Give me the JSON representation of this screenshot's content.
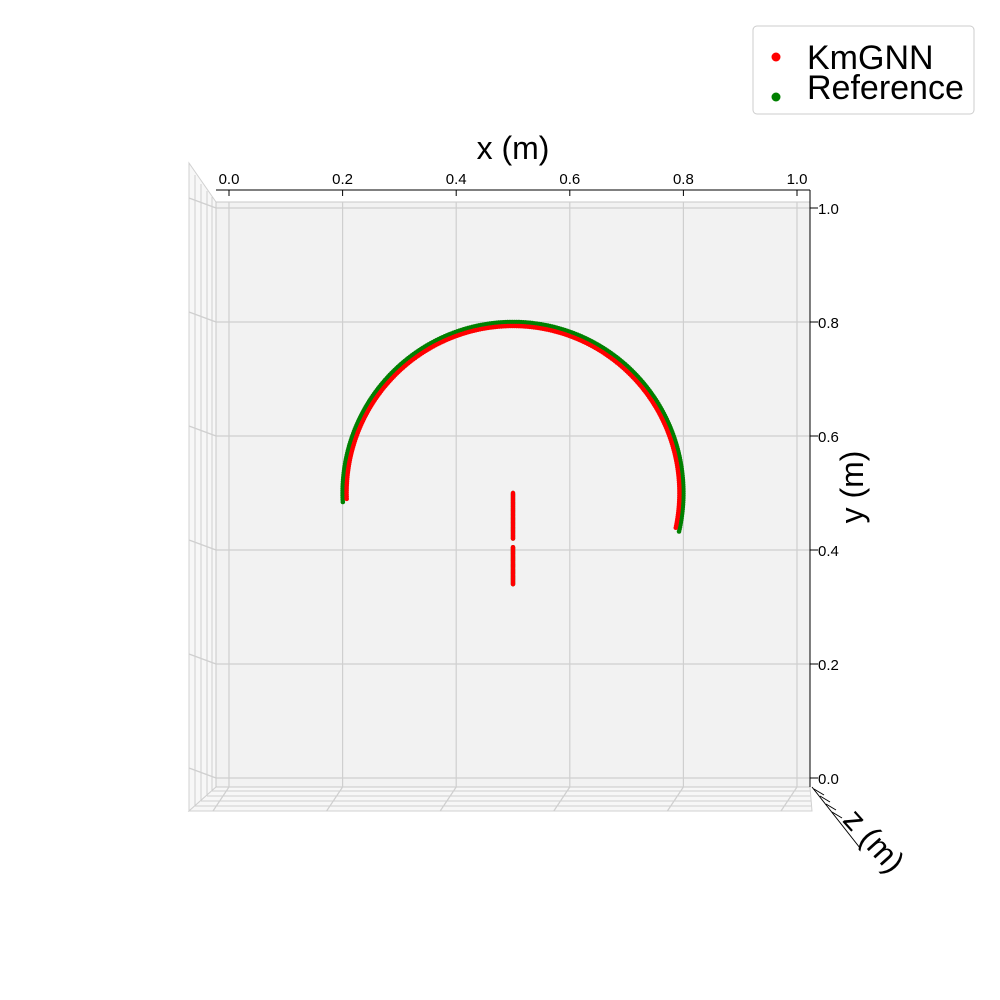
{
  "chart_data": {
    "type": "scatter",
    "projection": "3d",
    "xlabel": "x (m)",
    "ylabel": "y (m)",
    "zlabel": "z (m)",
    "xlim": [
      0.0,
      1.0
    ],
    "ylim": [
      0.0,
      1.0
    ],
    "x_ticks": [
      "0.0",
      "0.2",
      "0.4",
      "0.6",
      "0.8",
      "1.0"
    ],
    "y_ticks": [
      "0.0",
      "0.2",
      "0.4",
      "0.6",
      "0.8",
      "1.0"
    ],
    "grid": true,
    "legend_position": "top-right",
    "legend": [
      "KmGNN",
      "Reference"
    ],
    "series": [
      {
        "name": "Reference",
        "color": "#008000",
        "arc": {
          "center": [
            0.5,
            0.5
          ],
          "radius": 0.3,
          "from_deg": 183,
          "to_deg": -13
        },
        "segments": [
          {
            "x": 0.5,
            "y_from": 0.42,
            "y_to": 0.5
          },
          {
            "x": 0.5,
            "y_from": 0.34,
            "y_to": 0.405
          }
        ]
      },
      {
        "name": "KmGNN",
        "color": "#ff0000",
        "arc": {
          "center": [
            0.5,
            0.5
          ],
          "radius": 0.293,
          "from_deg": 182,
          "to_deg": -12
        },
        "segments": [
          {
            "x": 0.5,
            "y_from": 0.42,
            "y_to": 0.5
          },
          {
            "x": 0.5,
            "y_from": 0.34,
            "y_to": 0.405
          }
        ]
      }
    ]
  }
}
